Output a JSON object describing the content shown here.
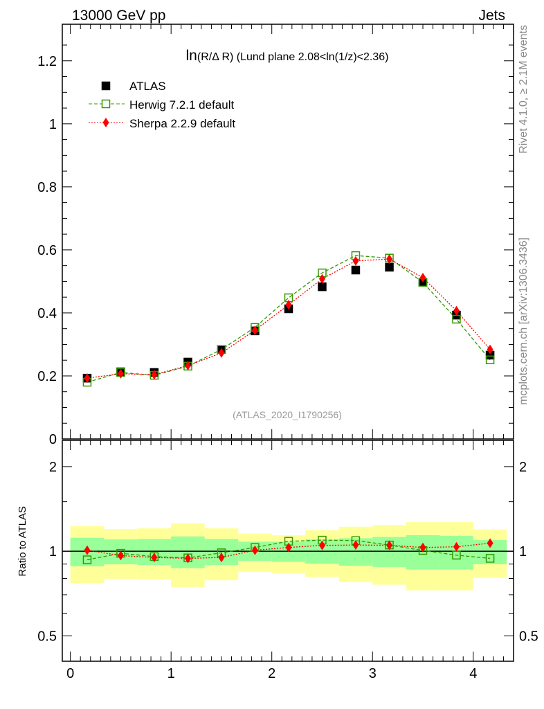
{
  "header": {
    "left": "13000 GeV pp",
    "right": "Jets"
  },
  "side_labels": {
    "top": "Rivet 4.1.0, ≥ 2.1M events",
    "bottom": "mcplots.cern.ch [arXiv:1306.3436]"
  },
  "colors": {
    "atlas": "#000000",
    "herwig": "#339900",
    "sherpa": "#ff0000",
    "band_outer": "#ffff99",
    "band_inner": "#99ff99"
  },
  "chart_data": [
    {
      "type": "line",
      "title": "ln(R/Δ R) (Lund plane 2.08<ln(1/z)<2.36)",
      "watermark": "(ATLAS_2020_I1790256)",
      "xlim": [
        -0.08,
        4.4
      ],
      "ylim": [
        0,
        1.316
      ],
      "yticks": [
        0,
        0.2,
        0.4,
        0.6,
        0.8,
        1,
        1.2
      ],
      "ytick_labels": [
        "0",
        "0.2",
        "0.4",
        "0.6",
        "0.8",
        "1",
        "1.2"
      ],
      "legend_position": "top-left",
      "x": [
        0.167,
        0.5,
        0.833,
        1.167,
        1.5,
        1.833,
        2.167,
        2.5,
        2.833,
        3.167,
        3.5,
        3.833,
        4.167
      ],
      "series": [
        {
          "name": "ATLAS",
          "style": "data",
          "values": [
            0.193,
            0.213,
            0.211,
            0.244,
            0.284,
            0.343,
            0.413,
            0.483,
            0.536,
            0.545,
            0.497,
            0.393,
            0.266
          ]
        },
        {
          "name": "Herwig 7.2.1 default",
          "style": "dashed-open-square",
          "values": [
            0.18,
            0.211,
            0.202,
            0.231,
            0.284,
            0.354,
            0.448,
            0.527,
            0.582,
            0.574,
            0.497,
            0.38,
            0.251
          ]
        },
        {
          "name": "Sherpa 2.2.9 default",
          "style": "dotted-diamond",
          "values": [
            0.193,
            0.207,
            0.204,
            0.233,
            0.273,
            0.345,
            0.426,
            0.508,
            0.565,
            0.571,
            0.512,
            0.407,
            0.284
          ]
        }
      ]
    },
    {
      "type": "line",
      "ylabel": "Ratio to ATLAS",
      "yscale": "log",
      "xlim": [
        -0.08,
        4.4
      ],
      "ylim": [
        0.406,
        2.48
      ],
      "xticks": [
        0,
        1,
        2,
        3,
        4
      ],
      "xtick_labels": [
        "0",
        "1",
        "2",
        "3",
        "4"
      ],
      "yticks": [
        0.5,
        1,
        2
      ],
      "ytick_labels": [
        "0.5",
        "1",
        "2"
      ],
      "bin_edges": [
        0,
        0.333,
        0.667,
        1,
        1.333,
        1.667,
        2,
        2.333,
        2.667,
        3,
        3.333,
        3.667,
        4,
        4.333
      ],
      "band_outer": {
        "up": [
          1.227,
          1.199,
          1.206,
          1.257,
          1.206,
          1.155,
          1.139,
          1.188,
          1.222,
          1.239,
          1.269,
          1.269,
          1.195
        ],
        "down": [
          0.77,
          0.798,
          0.794,
          0.746,
          0.788,
          0.845,
          0.835,
          0.811,
          0.777,
          0.76,
          0.726,
          0.726,
          0.803
        ]
      },
      "band_inner": {
        "up": [
          1.116,
          1.101,
          1.105,
          1.129,
          1.105,
          1.081,
          1.081,
          1.101,
          1.112,
          1.124,
          1.14,
          1.135,
          1.095
        ],
        "down": [
          0.884,
          0.898,
          0.893,
          0.871,
          0.893,
          0.923,
          0.916,
          0.903,
          0.888,
          0.879,
          0.861,
          0.861,
          0.899
        ]
      },
      "x": [
        0.167,
        0.5,
        0.833,
        1.167,
        1.5,
        1.833,
        2.167,
        2.5,
        2.833,
        3.167,
        3.5,
        3.833,
        4.167
      ],
      "series": [
        {
          "name": "Herwig 7.2.1 default",
          "values": [
            0.932,
            0.983,
            0.957,
            0.947,
            0.987,
            1.031,
            1.085,
            1.095,
            1.091,
            1.052,
            1.006,
            0.968,
            0.943
          ]
        },
        {
          "name": "Sherpa 2.2.9 default",
          "values": [
            1.008,
            0.965,
            0.95,
            0.943,
            0.95,
            1.008,
            1.031,
            1.049,
            1.052,
            1.05,
            1.031,
            1.037,
            1.068
          ]
        }
      ]
    }
  ]
}
